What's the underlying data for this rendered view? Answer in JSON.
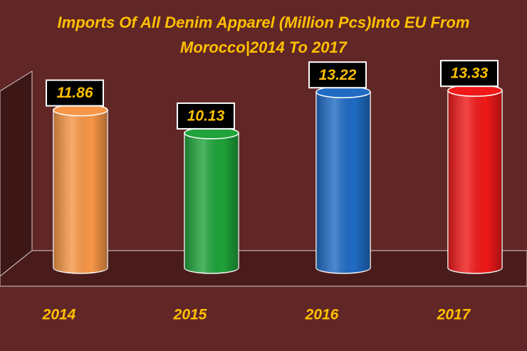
{
  "chart_data": {
    "type": "bar3d",
    "title": "Imports Of All Denim Apparel (Million Pcs)Into EU From",
    "subtitle": "Morocco|2014 To 2017",
    "categories": [
      "2014",
      "2015",
      "2016",
      "2017"
    ],
    "values": [
      11.86,
      10.13,
      13.22,
      13.33
    ],
    "colors": [
      "#f79646",
      "#1fa33a",
      "#1f6bc4",
      "#f01818"
    ],
    "ylim": [
      0,
      15
    ]
  }
}
